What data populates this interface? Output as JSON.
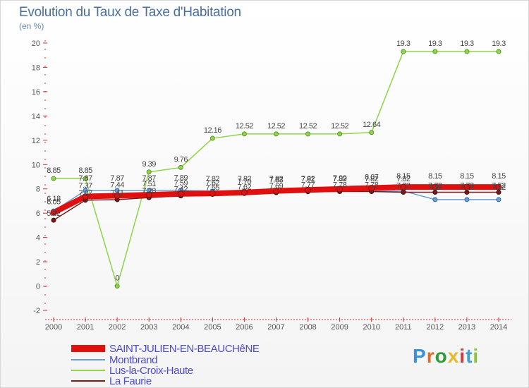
{
  "title": "Evolution du Taux de Taxe d'Habitation",
  "subtitle": "(en %)",
  "brand": {
    "text": "Proxiti",
    "letter_colors": [
      "#3a8fd6",
      "#e06a2a",
      "#2e9a3a",
      "#e8b82a",
      "#d63a3a",
      "#3aa0d6",
      "#8ac43a"
    ]
  },
  "chart_data": {
    "type": "line",
    "x": [
      2000,
      2001,
      2002,
      2003,
      2004,
      2005,
      2006,
      2007,
      2008,
      2009,
      2010,
      2011,
      2012,
      2013,
      2014
    ],
    "ylim": [
      -2,
      20
    ],
    "yticks": [
      -2,
      0,
      2,
      4,
      6,
      8,
      10,
      12,
      14,
      16,
      18,
      20
    ],
    "xlabel": "",
    "ylabel": "",
    "grid": false,
    "legend": "bottom-left",
    "series": [
      {
        "name": "SAINT-JULIEN-EN-BEAUCHêNE",
        "color": "#e01010",
        "width": 8,
        "values": [
          6.05,
          7.37,
          7.44,
          7.51,
          7.59,
          7.62,
          7.7,
          7.83,
          7.91,
          7.99,
          8.07,
          8.15,
          8.15,
          8.15,
          8.15
        ],
        "labels": [
          "6.05",
          "7.37",
          "7.44",
          "7.51",
          "7.59",
          "7.62",
          "7.70",
          "7.83",
          "7.91",
          "7.99",
          "8.07",
          "8.15",
          "8.15",
          "8.15",
          "8.15"
        ]
      },
      {
        "name": "Montbrand",
        "color": "#6a9fd4",
        "width": 1.5,
        "values": [
          6.18,
          7.87,
          7.87,
          7.87,
          7.89,
          7.82,
          7.82,
          7.82,
          7.82,
          7.82,
          7.82,
          7.82,
          7.12,
          7.12,
          7.12
        ],
        "labels": [
          "6.18",
          "7.87",
          "7.87",
          "7.87",
          "7.89",
          "7.82",
          "7.82",
          "7.82",
          "7.82",
          "7.82",
          "7.82",
          "7.82",
          "7.12",
          "7.12",
          "7.12"
        ]
      },
      {
        "name": "Lus-la-Croix-Haute",
        "color": "#8fd44a",
        "width": 1.5,
        "values": [
          8.85,
          8.85,
          0,
          9.39,
          9.76,
          12.16,
          12.52,
          12.52,
          12.52,
          12.52,
          12.64,
          19.3,
          19.3,
          19.3,
          19.3
        ],
        "labels": [
          "8.85",
          "8.85",
          "0",
          "9.39",
          "9.76",
          "12.16",
          "12.52",
          "12.52",
          "12.52",
          "12.52",
          "12.64",
          "19.3",
          "19.3",
          "19.3",
          "19.3"
        ]
      },
      {
        "name": "La Faurie",
        "color": "#7a1a1a",
        "width": 1.5,
        "values": [
          5.42,
          7.07,
          7.11,
          7.28,
          7.42,
          7.55,
          7.62,
          7.69,
          7.77,
          7.78,
          7.78,
          7.72,
          7.72,
          7.72,
          7.72
        ],
        "labels": [
          "5.42",
          "7.07",
          "7.11",
          "7.28",
          "7.42",
          "7.55",
          "7.62",
          "7.69",
          "7.77",
          "7.78",
          "7.78",
          "7.72",
          "7.72",
          "7.72",
          "7.72"
        ]
      }
    ]
  }
}
